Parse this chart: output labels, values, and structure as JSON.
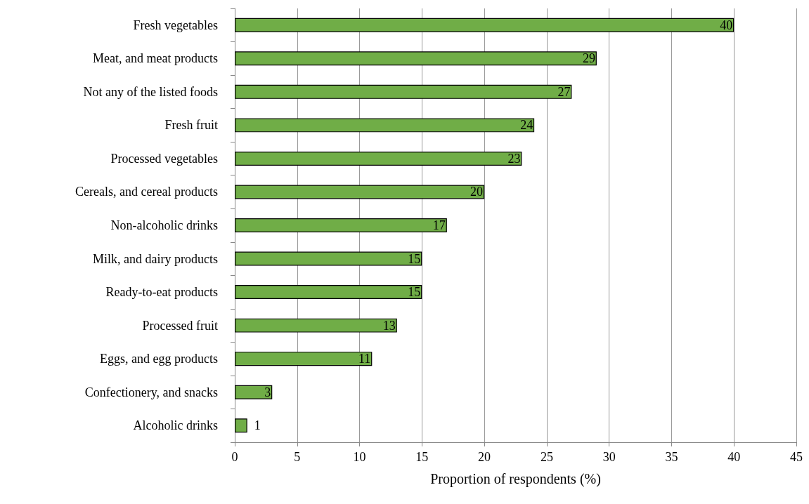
{
  "chart_data": {
    "type": "bar",
    "orientation": "horizontal",
    "xlabel": "Proportion of respondents (%)",
    "categories": [
      "Fresh vegetables",
      "Meat, and meat products",
      "Not any of the listed foods",
      "Fresh fruit",
      "Processed vegetables",
      "Cereals, and cereal products",
      "Non-alcoholic drinks",
      "Milk, and dairy products",
      "Ready-to-eat products",
      "Processed fruit",
      "Eggs, and egg products",
      "Confectionery, and snacks",
      "Alcoholic drinks"
    ],
    "values": [
      40,
      29,
      27,
      24,
      23,
      20,
      17,
      15,
      15,
      13,
      11,
      3,
      1
    ],
    "color": "#70ad47",
    "xlim": [
      0,
      45
    ],
    "xticks": [
      0,
      5,
      10,
      15,
      20,
      25,
      30,
      35,
      40,
      45
    ],
    "grid": "x",
    "data_labels": true
  }
}
